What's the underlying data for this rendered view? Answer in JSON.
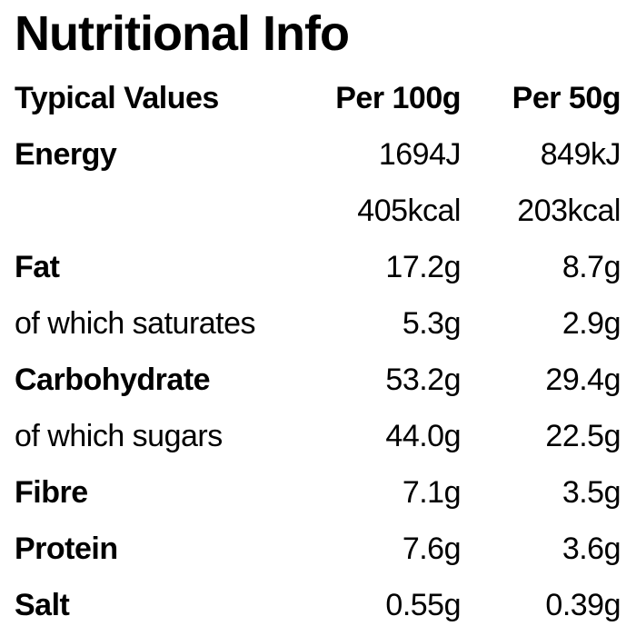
{
  "title": "Nutritional Info",
  "table": {
    "header": [
      "Typical Values",
      "Per 100g",
      "Per 50g"
    ],
    "rows": [
      {
        "label": "Energy",
        "bold": true,
        "per100g": "1694J",
        "per50g": "849kJ"
      },
      {
        "bold": false,
        "per100g": "405kcal",
        "per50g": "203kcal"
      },
      {
        "label": "Fat",
        "bold": true,
        "per100g": "17.2g",
        "per50g": "8.7g"
      },
      {
        "label": "of which saturates",
        "bold": false,
        "per100g": "5.3g",
        "per50g": "2.9g"
      },
      {
        "label": "Carbohydrate",
        "bold": true,
        "per100g": "53.2g",
        "per50g": "29.4g"
      },
      {
        "label": "of which sugars",
        "bold": false,
        "per100g": "44.0g",
        "per50g": "22.5g"
      },
      {
        "label": "Fibre",
        "bold": true,
        "per100g": "7.1g",
        "per50g": "3.5g"
      },
      {
        "label": "Protein",
        "bold": true,
        "per100g": "7.6g",
        "per50g": "3.6g"
      },
      {
        "label": "Salt",
        "bold": true,
        "per100g": "0.55g",
        "per50g": "0.39g"
      }
    ]
  }
}
